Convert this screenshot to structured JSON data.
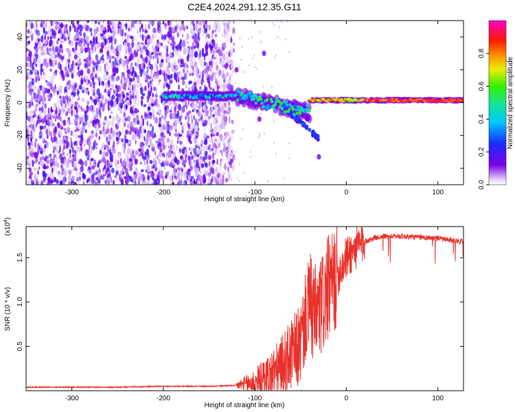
{
  "figure": {
    "title": "C2E4.2024.291.12.35.G11"
  },
  "colors": {
    "snr_line": "#e8302a",
    "frame": "#000000"
  },
  "chart_data": [
    {
      "type": "heatmap",
      "title": "C2E4.2024.291.12.35.G11",
      "xlabel": "Height of straight line (km)",
      "ylabel": "Frequency (Hz)",
      "xlim": [
        -350,
        128
      ],
      "ylim": [
        -50,
        50
      ],
      "xticks": [
        -300,
        -200,
        -100,
        0,
        100
      ],
      "yticks": [
        -40,
        -20,
        0,
        20,
        40
      ],
      "grid": false,
      "colorbar": {
        "label": "Normalized spectral amplitude",
        "range": [
          0,
          1
        ],
        "ticks": [
          0.0,
          0.2,
          0.4,
          0.6,
          0.8
        ],
        "colormap": "rainbow (white-violet-blue-cyan-green-yellow-red-magenta)"
      },
      "features": [
        {
          "region": "noise",
          "x_range": [
            -350,
            -135
          ],
          "y_range": [
            -50,
            50
          ],
          "amplitude": [
            0.0,
            0.25
          ]
        },
        {
          "region": "carrier",
          "x_range": [
            -200,
            -120
          ],
          "y_center": 4,
          "amplitude": [
            0.2,
            0.5
          ]
        },
        {
          "region": "carrier",
          "x_range": [
            -120,
            -40
          ],
          "y_center_range": [
            4,
            -6
          ],
          "amplitude": [
            0.3,
            0.6
          ]
        },
        {
          "region": "carrier",
          "x_range": [
            -40,
            128
          ],
          "y_center": 1.5,
          "amplitude": [
            0.7,
            1.0
          ]
        }
      ]
    },
    {
      "type": "line",
      "xlabel": "Height of straight line (km)",
      "ylabel": "SNR (10 * v/v)",
      "scale_label": "(x10",
      "scale_exponent": "4",
      "xlim": [
        -350,
        128
      ],
      "ylim": [
        0,
        1.85
      ],
      "xticks": [
        -300,
        -200,
        -100,
        0,
        100
      ],
      "yticks": [
        0.5,
        1.0,
        1.5
      ],
      "ytick_labels": [
        "0.5",
        "1.0",
        "1.5"
      ],
      "grid": false,
      "series": [
        {
          "x": [
            -350,
            -300,
            -250,
            -200,
            -150,
            -120,
            -100,
            -90,
            -80,
            -70,
            -60,
            -50,
            -45,
            -40,
            -35,
            -30,
            -25,
            -20,
            -15,
            -10,
            -5,
            0,
            10,
            20,
            30,
            40,
            60,
            80,
            100,
            110,
            120,
            128
          ],
          "values": [
            0.04,
            0.04,
            0.04,
            0.05,
            0.05,
            0.06,
            0.09,
            0.13,
            0.2,
            0.28,
            0.4,
            0.52,
            0.8,
            1.0,
            0.82,
            0.9,
            1.0,
            1.15,
            1.2,
            1.3,
            1.4,
            1.5,
            1.6,
            1.68,
            1.72,
            1.74,
            1.74,
            1.73,
            1.72,
            1.7,
            1.69,
            1.68
          ]
        }
      ]
    }
  ]
}
